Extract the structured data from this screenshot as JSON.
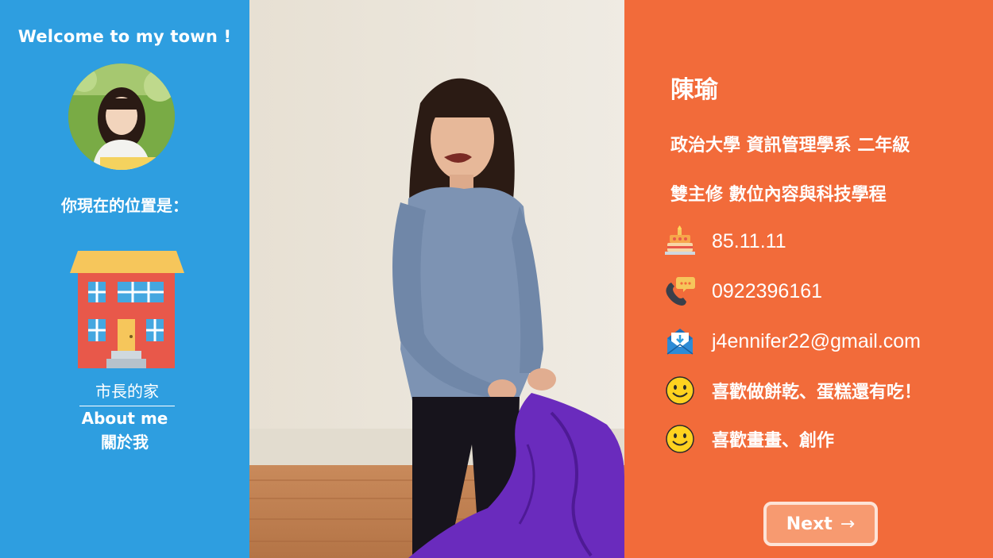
{
  "sidebar": {
    "welcome": "Welcome to my town !",
    "location_label": "你現在的位置是：",
    "house_caption": "市長的家",
    "about_en": "About me",
    "about_zh": "關於我"
  },
  "profile": {
    "name": "陳瑜",
    "school": "政治大學 資訊管理學系 二年級",
    "major": "雙主修 數位內容與科技學程",
    "birthday": "85.11.11",
    "phone": "0922396161",
    "email": "j4ennifer22@gmail.com",
    "like1": "喜歡做餅乾、蛋糕還有吃！",
    "like2": "喜歡畫畫、創作"
  },
  "next": {
    "label": "Next",
    "arrow": "→"
  },
  "colors": {
    "sidebar": "#2e9ee0",
    "info_panel": "#f26b3a",
    "next_button": "#f79a70",
    "house_wall": "#e8584a",
    "house_roof": "#f6c65b"
  },
  "icons": {
    "avatar": "avatar",
    "house": "house-icon",
    "birthday": "cake-icon",
    "phone": "phone-icon",
    "email": "mail-icon",
    "smile": "smiley-icon"
  }
}
